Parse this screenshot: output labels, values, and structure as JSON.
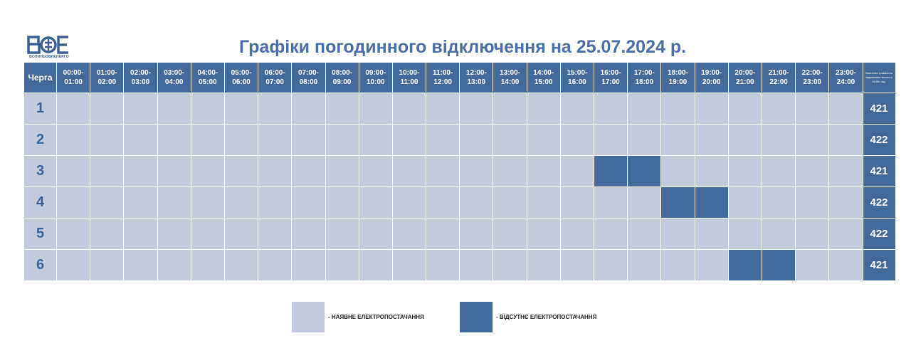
{
  "logo": {
    "mark": "ВОЕ",
    "subtitle": "ВОЛИНЬОБЛЕНЕРГО"
  },
  "title": "Графіки погодинного відключення на 25.07.2024 р.",
  "header": {
    "queue_label": "Черга",
    "total_label": "Фактична тривалість відключень всього з 16.05. год.",
    "hours": [
      {
        "from": "00:00-",
        "to": "01:00"
      },
      {
        "from": "01:00-",
        "to": "02:00"
      },
      {
        "from": "02:00-",
        "to": "03:00"
      },
      {
        "from": "03:00-",
        "to": "04:00"
      },
      {
        "from": "04:00-",
        "to": "05:00"
      },
      {
        "from": "05:00-",
        "to": "06:00"
      },
      {
        "from": "06:00-",
        "to": "07:00"
      },
      {
        "from": "07:00-",
        "to": "08:00"
      },
      {
        "from": "08:00-",
        "to": "09:00"
      },
      {
        "from": "09:00-",
        "to": "10:00"
      },
      {
        "from": "10:00-",
        "to": "11:00"
      },
      {
        "from": "11:00-",
        "to": "12:00"
      },
      {
        "from": "12:00-",
        "to": "13:00"
      },
      {
        "from": "13:00-",
        "to": "14:00"
      },
      {
        "from": "14:00-",
        "to": "15:00"
      },
      {
        "from": "15:00-",
        "to": "16:00"
      },
      {
        "from": "16:00-",
        "to": "17:00"
      },
      {
        "from": "17:00-",
        "to": "18:00"
      },
      {
        "from": "18:00-",
        "to": "19:00"
      },
      {
        "from": "19:00-",
        "to": "20:00"
      },
      {
        "from": "20:00-",
        "to": "21:00"
      },
      {
        "from": "21:00-",
        "to": "22:00"
      },
      {
        "from": "22:00-",
        "to": "23:00"
      },
      {
        "from": "23:00-",
        "to": "24:00"
      }
    ]
  },
  "rows": [
    {
      "queue": "1",
      "total": "421",
      "off": []
    },
    {
      "queue": "2",
      "total": "422",
      "off": []
    },
    {
      "queue": "3",
      "total": "421",
      "off": [
        16,
        17
      ]
    },
    {
      "queue": "4",
      "total": "422",
      "off": [
        18,
        19
      ]
    },
    {
      "queue": "5",
      "total": "422",
      "off": []
    },
    {
      "queue": "6",
      "total": "421",
      "off": [
        20,
        21
      ]
    }
  ],
  "legend": {
    "on_label": "- НАЯВНЕ ЕЛЕКТРОПОСТАЧАННЯ",
    "off_label": "- ВІДСУТНЄ ЕЛЕКТРОПОСТАЧАННЯ"
  },
  "colors": {
    "on": "#c2cadb",
    "off": "#426b9c",
    "title": "#4a6ea8"
  }
}
